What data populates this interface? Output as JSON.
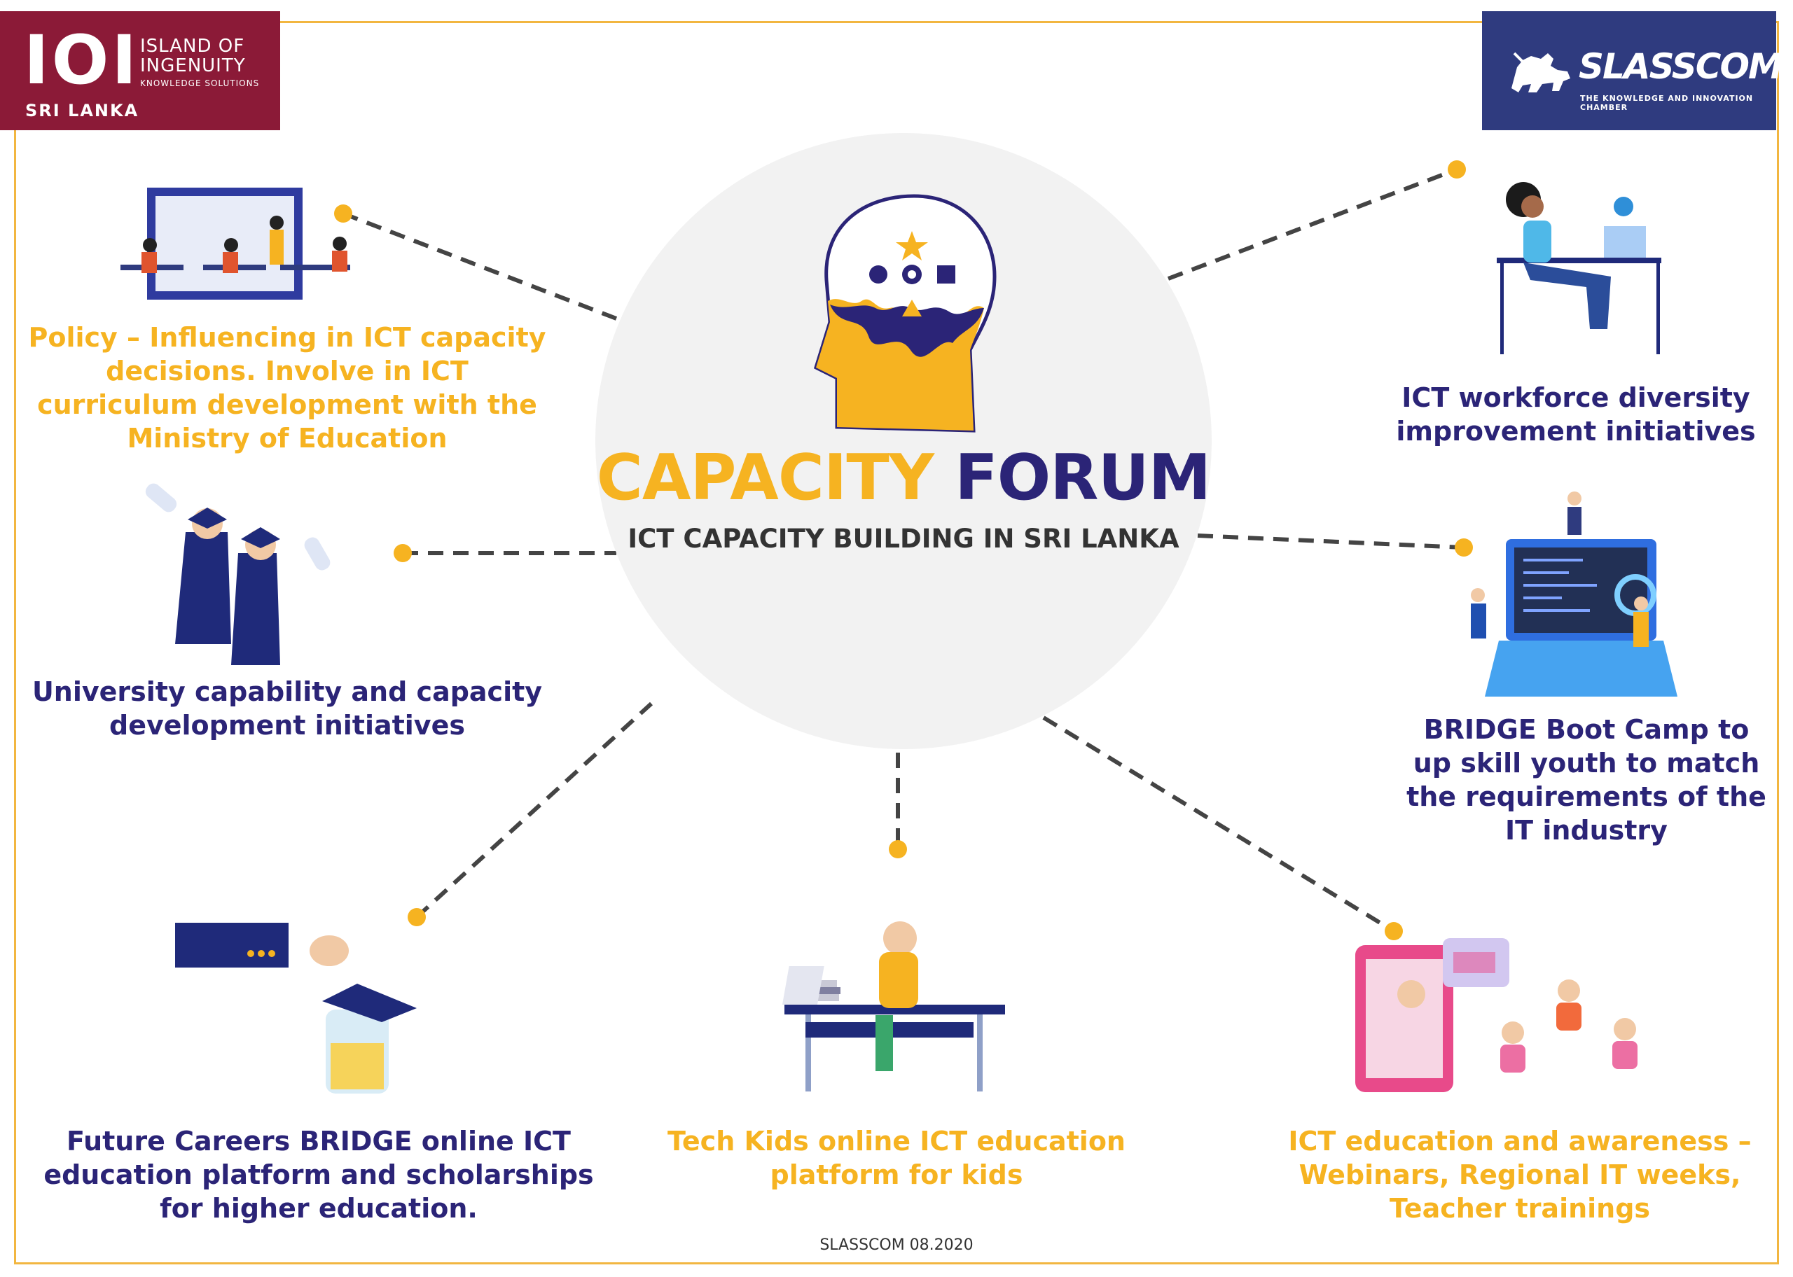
{
  "logos": {
    "ioi": {
      "mark": "IOI",
      "name_line1": "ISLAND OF",
      "name_line2": "INGENUITY",
      "tagline": "KNOWLEDGE SOLUTIONS",
      "country": "SRI LANKA"
    },
    "slasscom": {
      "name": "SLASSCOM",
      "tagline": "THE KNOWLEDGE AND INNOVATION CHAMBER"
    }
  },
  "center": {
    "title_part1": "CAPACITY",
    "title_part2": "FORUM",
    "subtitle": "ICT CAPACITY BUILDING IN SRI LANKA"
  },
  "initiatives": {
    "policy": "Policy – Influencing in ICT capacity decisions. Involve in ICT curriculum development with the Ministry of Education",
    "university": "University capability and capacity development initiatives",
    "future_careers": "Future Careers BRIDGE online ICT education platform and scholarships for higher education.",
    "tech_kids": "Tech Kids online ICT education platform for kids",
    "education_awareness": "ICT education and awareness – Webinars, Regional IT weeks, Teacher trainings",
    "bootcamp": "BRIDGE Boot Camp to up skill youth to match the requirements of the IT industry",
    "diversity": "ICT workforce diversity improvement initiatives"
  },
  "footer": "SLASSCOM 08.2020",
  "colors": {
    "yellow": "#f6b321",
    "navy": "#2b2477",
    "maroon": "#8b1a37",
    "slasscom_blue": "#2f3b7f",
    "frame": "#f2b640"
  }
}
